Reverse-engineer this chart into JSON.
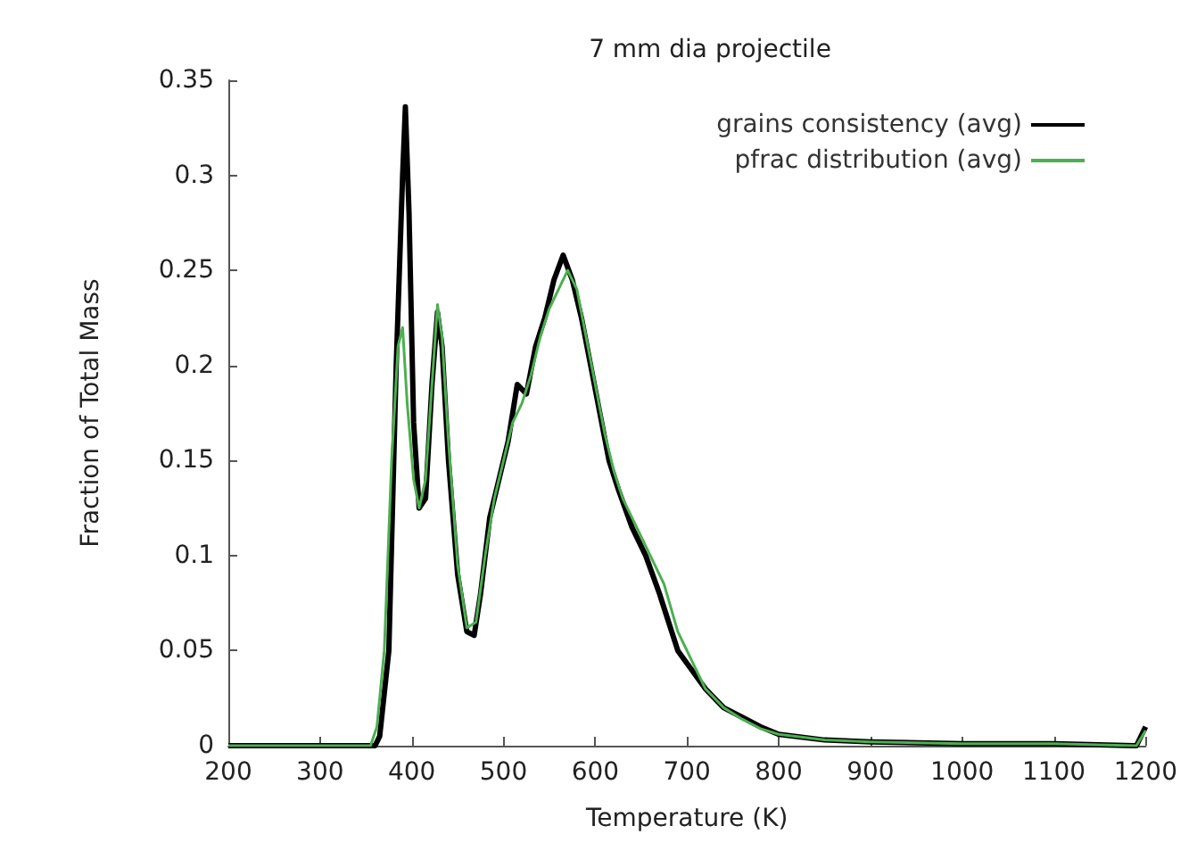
{
  "chart_data": {
    "type": "line",
    "title": "7 mm dia projectile",
    "xlabel": "Temperature (K)",
    "ylabel": "Fraction of Total Mass",
    "xlim": [
      200,
      1200
    ],
    "xticks": [
      200,
      300,
      400,
      500,
      600,
      700,
      800,
      900,
      1000,
      1100,
      1200
    ],
    "ylim": [
      0,
      0.35
    ],
    "yticks": [
      0,
      0.05,
      0.1,
      0.15,
      0.2,
      0.25,
      0.3,
      0.35
    ],
    "grid": false,
    "legend": "top right",
    "marker": "none",
    "line_style": "solid",
    "series": [
      {
        "name": "grains consistency (avg)",
        "color": "#000000",
        "x": [
          200,
          300,
          360,
          365,
          375,
          383,
          390,
          393,
          397,
          402,
          408,
          415,
          422,
          428,
          433,
          440,
          450,
          460,
          468,
          475,
          485,
          495,
          505,
          515,
          525,
          535,
          545,
          555,
          565,
          575,
          585,
          595,
          605,
          615,
          625,
          640,
          655,
          670,
          680,
          690,
          705,
          720,
          740,
          760,
          780,
          800,
          850,
          900,
          1000,
          1100,
          1190,
          1200
        ],
        "values": [
          0,
          0,
          0,
          0.005,
          0.05,
          0.2,
          0.3,
          0.336,
          0.28,
          0.17,
          0.125,
          0.13,
          0.19,
          0.228,
          0.21,
          0.15,
          0.09,
          0.06,
          0.058,
          0.08,
          0.12,
          0.14,
          0.16,
          0.19,
          0.185,
          0.21,
          0.225,
          0.245,
          0.258,
          0.245,
          0.225,
          0.2,
          0.175,
          0.15,
          0.135,
          0.115,
          0.1,
          0.08,
          0.065,
          0.05,
          0.04,
          0.03,
          0.02,
          0.015,
          0.01,
          0.006,
          0.003,
          0.002,
          0.001,
          0.001,
          0,
          0.01
        ]
      },
      {
        "name": "pfrac distribution (avg)",
        "color": "#4caf50",
        "x": [
          200,
          300,
          355,
          362,
          370,
          378,
          385,
          390,
          395,
          402,
          408,
          415,
          422,
          428,
          433,
          440,
          450,
          460,
          470,
          480,
          490,
          500,
          510,
          520,
          530,
          540,
          550,
          560,
          570,
          580,
          590,
          600,
          610,
          620,
          630,
          645,
          660,
          675,
          690,
          705,
          720,
          740,
          760,
          780,
          800,
          850,
          900,
          1000,
          1100,
          1190,
          1200
        ],
        "values": [
          0,
          0,
          0,
          0.01,
          0.05,
          0.15,
          0.21,
          0.22,
          0.18,
          0.14,
          0.125,
          0.14,
          0.19,
          0.232,
          0.215,
          0.16,
          0.095,
          0.062,
          0.065,
          0.1,
          0.13,
          0.15,
          0.17,
          0.18,
          0.195,
          0.215,
          0.23,
          0.24,
          0.25,
          0.24,
          0.215,
          0.19,
          0.165,
          0.145,
          0.13,
          0.115,
          0.1,
          0.085,
          0.06,
          0.045,
          0.03,
          0.02,
          0.014,
          0.009,
          0.006,
          0.003,
          0.002,
          0.001,
          0.001,
          0,
          0.008
        ]
      }
    ]
  }
}
